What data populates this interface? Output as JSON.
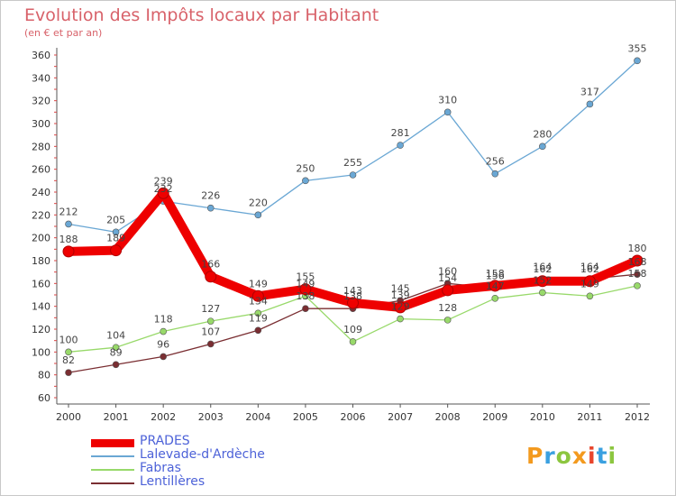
{
  "title": "Evolution des Impôts locaux par Habitant",
  "subtitle": "(en € et par an)",
  "brand": "Proxiti",
  "colors": {
    "prades": "#ee0000",
    "lalevade": "#6aa7d4",
    "fabras": "#98d96a",
    "lentilleres": "#7a2e32",
    "title": "#d8626a",
    "legend_text": "#4d62d8"
  },
  "chart_data": {
    "type": "line",
    "title": "Evolution des Impôts locaux par Habitant",
    "subtitle": "(en € et par an)",
    "xlabel": "",
    "ylabel": "",
    "categories": [
      "2000",
      "2001",
      "2002",
      "2003",
      "2004",
      "2005",
      "2006",
      "2007",
      "2008",
      "2009",
      "2010",
      "2011",
      "2012"
    ],
    "ylim": [
      60,
      360
    ],
    "yticks": [
      60,
      80,
      100,
      120,
      140,
      160,
      180,
      200,
      220,
      240,
      260,
      280,
      300,
      320,
      340,
      360
    ],
    "grid": false,
    "legend_position": "bottom-left",
    "series": [
      {
        "name": "PRADES",
        "color": "#ee0000",
        "values": [
          188,
          189,
          239,
          166,
          149,
          155,
          143,
          139,
          154,
          158,
          162,
          162,
          180
        ]
      },
      {
        "name": "Lalevade-d'Ardèche",
        "color": "#6aa7d4",
        "values": [
          212,
          205,
          232,
          226,
          220,
          250,
          255,
          281,
          310,
          256,
          280,
          317,
          355
        ]
      },
      {
        "name": "Fabras",
        "color": "#98d96a",
        "values": [
          100,
          104,
          118,
          127,
          134,
          149,
          109,
          129,
          128,
          147,
          152,
          149,
          158
        ]
      },
      {
        "name": "Lentillères",
        "color": "#7a2e32",
        "values": [
          82,
          89,
          96,
          107,
          119,
          138,
          138,
          145,
          160,
          156,
          164,
          164,
          168
        ]
      }
    ]
  }
}
